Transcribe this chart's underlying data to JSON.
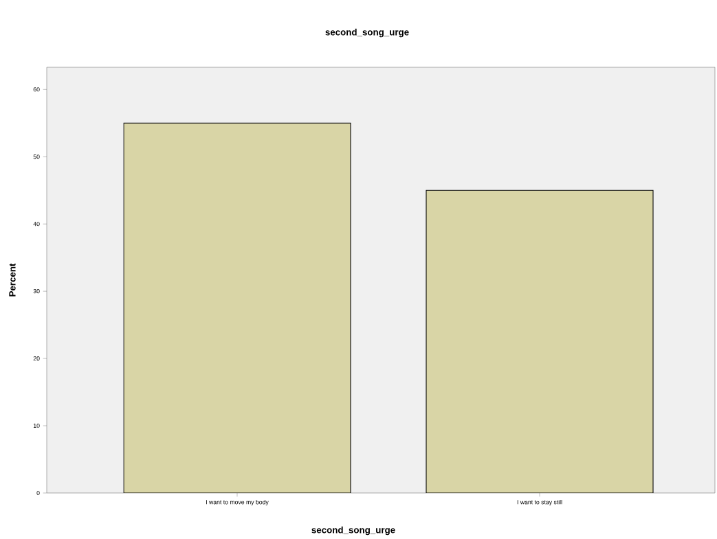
{
  "chart_data": {
    "type": "bar",
    "title": "second_song_urge",
    "xlabel": "second_song_urge",
    "ylabel": "Percent",
    "categories": [
      "I want to move my body",
      "I want to stay still"
    ],
    "values": [
      55,
      45
    ],
    "color": "#d9d5a6",
    "ylim": [
      0,
      63.3
    ],
    "yticks": [
      0,
      10,
      20,
      30,
      40,
      50,
      60
    ]
  }
}
